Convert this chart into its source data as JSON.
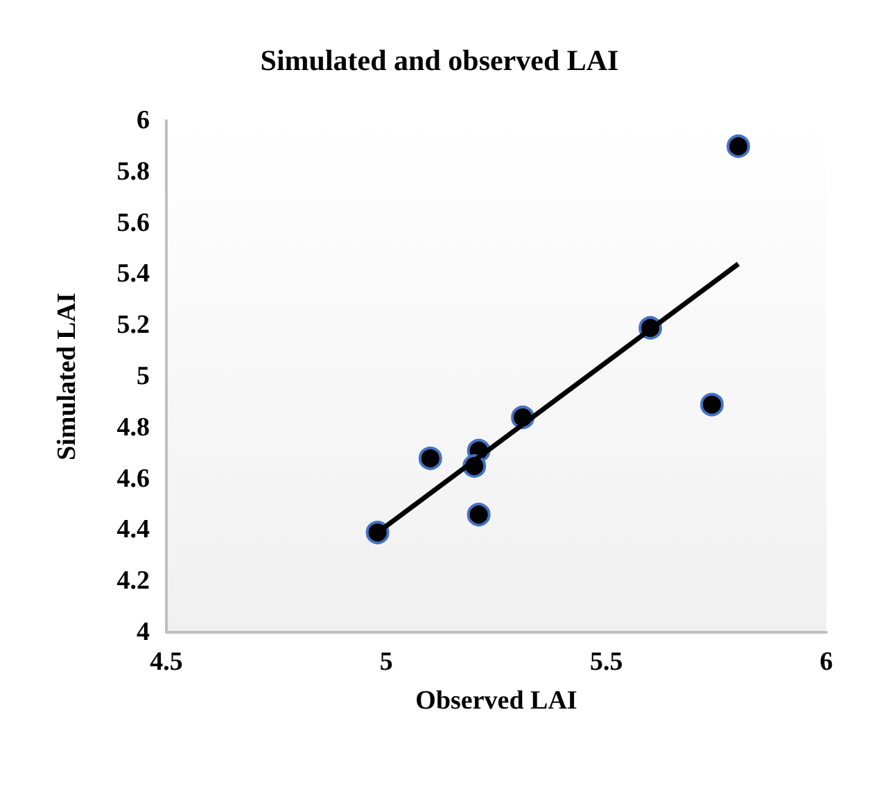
{
  "chart_data": {
    "type": "scatter",
    "title": "Simulated and observed LAI",
    "xlabel": "Observed LAI",
    "ylabel": "Simulated LAI",
    "series": [
      {
        "marker": "circle",
        "color": "#000000",
        "x": [
          4.98,
          5.1,
          5.21,
          5.2,
          5.21,
          5.31,
          5.6,
          5.74,
          5.8
        ],
        "values": [
          4.39,
          4.68,
          4.71,
          4.65,
          4.46,
          4.84,
          5.19,
          4.89,
          5.9
        ]
      },
      {
        "type": "line",
        "marker": "none",
        "color": "#000000",
        "x": [
          4.98,
          5.8
        ],
        "values": [
          4.39,
          5.44
        ]
      }
    ],
    "xlim": [
      4.5,
      6
    ],
    "xticks": [
      4.5,
      5,
      5.5,
      6
    ],
    "ylim": [
      4,
      6
    ],
    "yticks": [
      4,
      4.2,
      4.4,
      4.6,
      4.8,
      5,
      5.2,
      5.4,
      5.6,
      5.8,
      6
    ],
    "grid": false
  }
}
